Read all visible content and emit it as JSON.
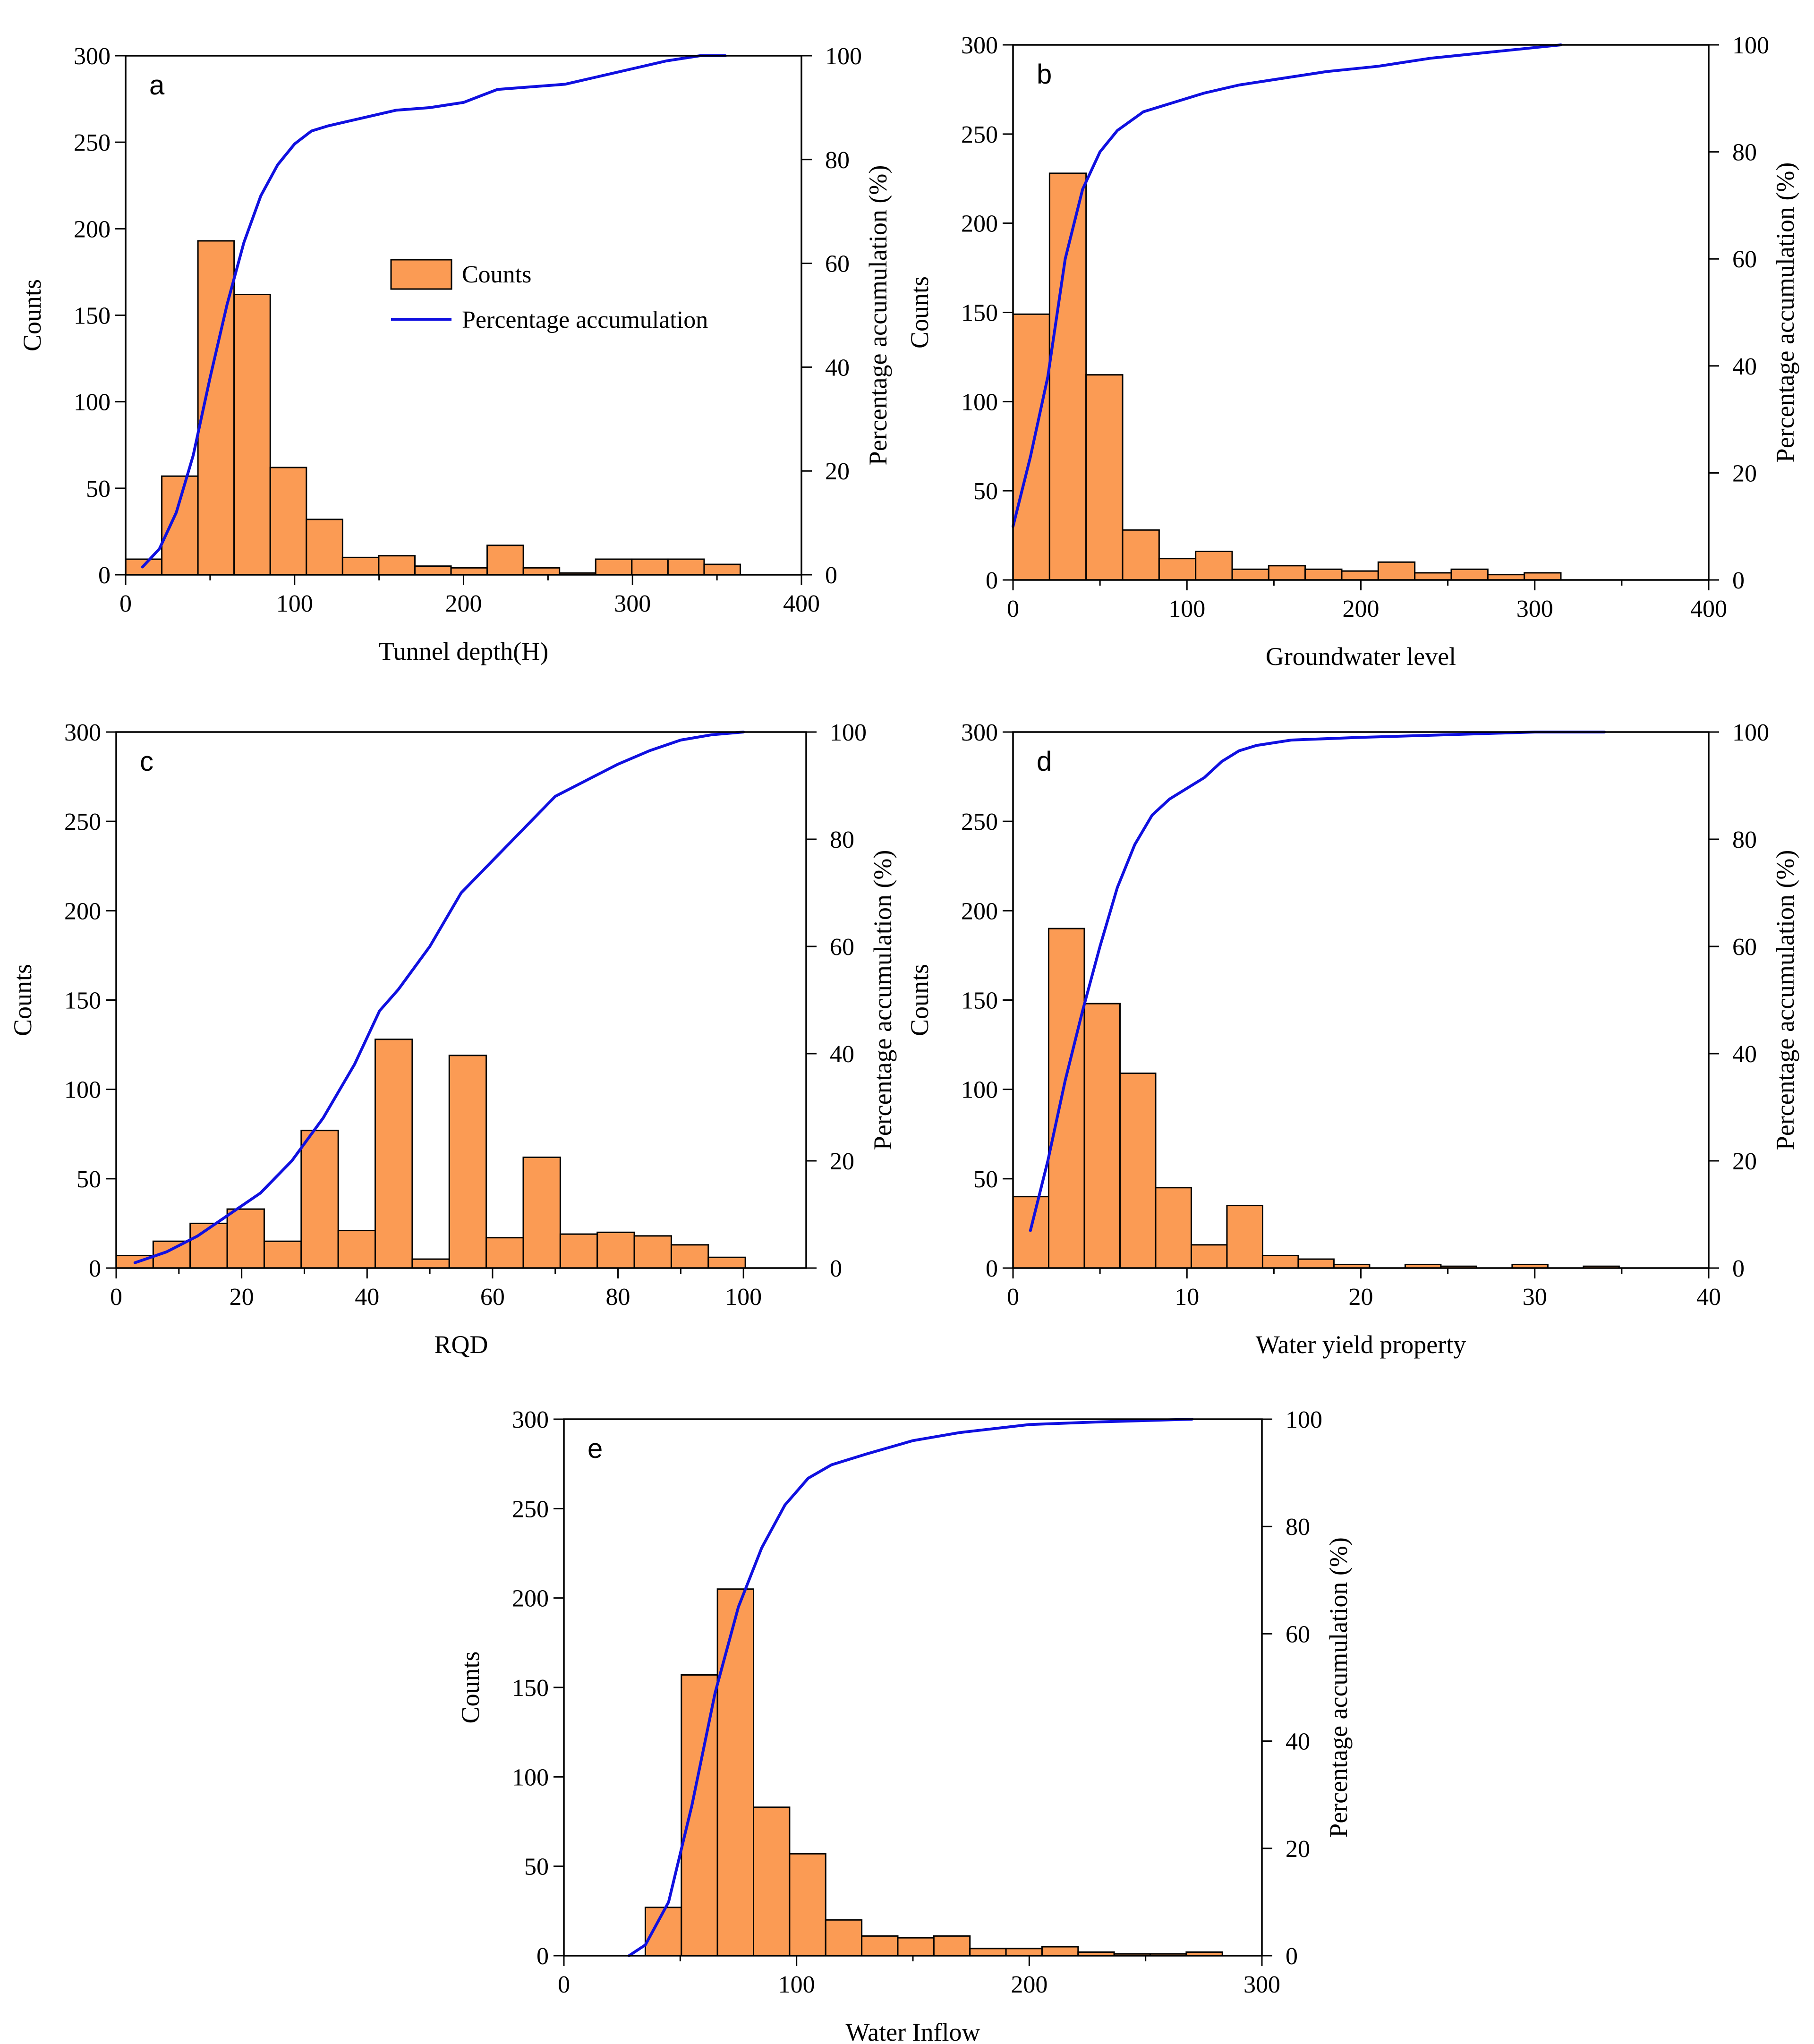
{
  "colors": {
    "bar_fill": "#FB9B54",
    "bar_stroke": "#000000",
    "line": "#1010E0",
    "axis": "#000000"
  },
  "legend": {
    "bars_label": "Counts",
    "line_label": "Percentage accumulation"
  },
  "chart_data": [
    {
      "type": "bar",
      "panel": "a",
      "xlabel": "Tunnel depth(H)",
      "ylabel": "Counts",
      "y2label": "Percentage accumulation (%)",
      "xlim": [
        0,
        400
      ],
      "ylim": [
        0,
        300
      ],
      "y2lim": [
        0,
        100
      ],
      "xticks": [
        0,
        100,
        200,
        300,
        400
      ],
      "yticks": [
        0,
        50,
        100,
        150,
        200,
        250,
        300
      ],
      "y2ticks": [
        0,
        20,
        40,
        60,
        80,
        100
      ],
      "bin_width": 21.4,
      "bin_edges_start": 0,
      "values": [
        9,
        57,
        193,
        162,
        62,
        32,
        10,
        11,
        5,
        4,
        17,
        4,
        1,
        9,
        9,
        9,
        6
      ],
      "cumulative": {
        "x": [
          10,
          20,
          30,
          40,
          50,
          60,
          70,
          80,
          90,
          100,
          110,
          120,
          140,
          160,
          180,
          200,
          220,
          240,
          260,
          280,
          300,
          320,
          340,
          355
        ],
        "y": [
          1.5,
          5,
          12,
          23,
          38,
          52,
          64,
          73,
          79,
          83,
          85.5,
          86.5,
          88,
          89.5,
          90,
          91,
          93.5,
          94,
          94.5,
          96,
          97.5,
          99,
          100,
          100
        ]
      },
      "legend": "center-right"
    },
    {
      "type": "bar",
      "panel": "b",
      "xlabel": "Groundwater level",
      "ylabel": "Counts",
      "y2label": "Percentage accumulation (%)",
      "xlim": [
        0,
        400
      ],
      "ylim": [
        0,
        300
      ],
      "y2lim": [
        0,
        100
      ],
      "xticks": [
        0,
        100,
        200,
        300,
        400
      ],
      "yticks": [
        0,
        50,
        100,
        150,
        200,
        250,
        300
      ],
      "y2ticks": [
        0,
        20,
        40,
        60,
        80,
        100
      ],
      "bin_width": 21,
      "bin_edges_start": 0,
      "values": [
        149,
        228,
        115,
        28,
        12,
        16,
        6,
        8,
        6,
        5,
        10,
        4,
        6,
        3,
        4
      ],
      "cumulative": {
        "x": [
          0,
          10,
          20,
          30,
          40,
          50,
          60,
          75,
          90,
          110,
          130,
          150,
          180,
          210,
          240,
          270,
          300,
          315
        ],
        "y": [
          10,
          23,
          38,
          60,
          73,
          80,
          84,
          87.5,
          89,
          91,
          92.5,
          93.5,
          95,
          96,
          97.5,
          98.5,
          99.5,
          100
        ]
      }
    },
    {
      "type": "bar",
      "panel": "c",
      "xlabel": "RQD",
      "ylabel": "Counts",
      "y2label": "Percentage accumulation (%)",
      "xlim": [
        0,
        110
      ],
      "ylim": [
        0,
        300
      ],
      "y2lim": [
        0,
        100
      ],
      "xticks": [
        0,
        20,
        40,
        60,
        80,
        100
      ],
      "yticks": [
        0,
        50,
        100,
        150,
        200,
        250,
        300
      ],
      "y2ticks": [
        0,
        20,
        40,
        60,
        80,
        100
      ],
      "bin_width": 5.9,
      "bin_edges_start": 0,
      "values": [
        7,
        15,
        25,
        33,
        15,
        77,
        21,
        128,
        5,
        119,
        17,
        62,
        19,
        20,
        18,
        13,
        6
      ],
      "cumulative": {
        "x": [
          3,
          8,
          13,
          18,
          23,
          28,
          33,
          38,
          42,
          45,
          50,
          55,
          60,
          65,
          70,
          75,
          80,
          85,
          90,
          95,
          100
        ],
        "y": [
          1,
          3,
          6,
          10,
          14,
          20,
          28,
          38,
          48,
          52,
          60,
          70,
          76,
          82,
          88,
          91,
          94,
          96.5,
          98.5,
          99.5,
          100
        ]
      }
    },
    {
      "type": "bar",
      "panel": "d",
      "xlabel": "Water yield property",
      "ylabel": "Counts",
      "y2label": "Percentage accumulation (%)",
      "xlim": [
        0,
        40
      ],
      "ylim": [
        0,
        300
      ],
      "y2lim": [
        0,
        100
      ],
      "xticks": [
        0,
        10,
        20,
        30,
        40
      ],
      "yticks": [
        0,
        50,
        100,
        150,
        200,
        250,
        300
      ],
      "y2ticks": [
        0,
        20,
        40,
        60,
        80,
        100
      ],
      "bin_width": 2.05,
      "bin_edges_start": 0,
      "values": [
        40,
        190,
        148,
        109,
        45,
        13,
        35,
        7,
        5,
        2,
        0,
        2,
        1,
        0,
        2,
        0,
        1
      ],
      "cumulative": {
        "x": [
          1,
          2,
          3,
          4,
          5,
          6,
          7,
          8,
          9,
          10,
          11,
          12,
          13,
          14,
          16,
          20,
          25,
          30,
          34
        ],
        "y": [
          7,
          20,
          35,
          48,
          60,
          71,
          79,
          84.5,
          87.5,
          89.5,
          91.5,
          94.5,
          96.5,
          97.5,
          98.5,
          99,
          99.5,
          100,
          100
        ]
      }
    },
    {
      "type": "bar",
      "panel": "e",
      "xlabel": "Water Inflow",
      "ylabel": "Counts",
      "y2label": "Percentage accumulation (%)",
      "xlim": [
        0,
        300
      ],
      "ylim": [
        0,
        300
      ],
      "y2lim": [
        0,
        100
      ],
      "xticks": [
        0,
        100,
        200,
        300
      ],
      "yticks": [
        0,
        50,
        100,
        150,
        200,
        250,
        300
      ],
      "y2ticks": [
        0,
        20,
        40,
        60,
        80,
        100
      ],
      "bin_width": 15.5,
      "bin_edges_start": 35,
      "values": [
        27,
        157,
        205,
        83,
        57,
        20,
        11,
        10,
        11,
        4,
        4,
        5,
        2,
        1,
        1,
        2
      ],
      "cumulative": {
        "x": [
          28,
          35,
          45,
          55,
          65,
          75,
          85,
          95,
          105,
          115,
          130,
          150,
          170,
          200,
          230,
          270
        ],
        "y": [
          0,
          2,
          10,
          28,
          49,
          65,
          76,
          84,
          89,
          91.5,
          93.5,
          96,
          97.5,
          99,
          99.5,
          100
        ]
      }
    }
  ]
}
